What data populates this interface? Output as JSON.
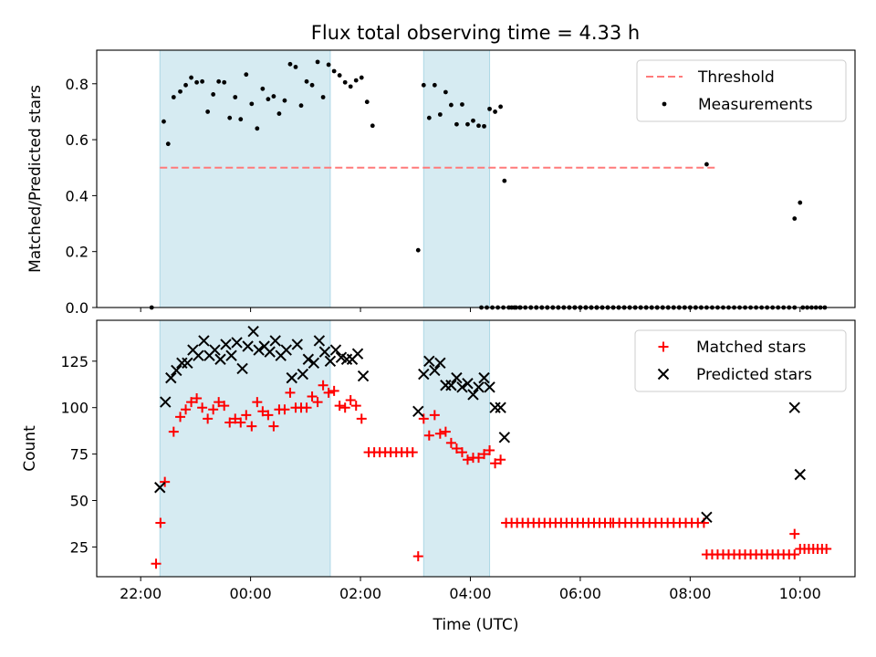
{
  "figure_title": "Flux total observing time = 4.33 h",
  "xlabel": "Time (UTC)",
  "xticks": [
    "22:00",
    "00:00",
    "02:00",
    "04:00",
    "06:00",
    "08:00",
    "10:00"
  ],
  "observing_windows": [
    [
      22.35,
      25.45
    ],
    [
      27.15,
      28.35
    ]
  ],
  "chart_data": [
    {
      "type": "scatter",
      "ylabel": "Matched/Predicted stars",
      "ylim": [
        0,
        0.92
      ],
      "yticks": [
        "0.0",
        "0.2",
        "0.4",
        "0.6",
        "0.8"
      ],
      "legend_position": "top-right",
      "threshold": {
        "name": "Threshold",
        "value": 0.5,
        "x_range": [
          22.35,
          32.5
        ],
        "color": "#ff7a7a"
      },
      "series": [
        {
          "name": "Measurements",
          "color": "#000000",
          "points": [
            [
              22.2,
              0.0
            ],
            [
              22.42,
              0.665
            ],
            [
              22.5,
              0.585
            ],
            [
              22.6,
              0.752
            ],
            [
              22.72,
              0.772
            ],
            [
              22.82,
              0.795
            ],
            [
              22.92,
              0.822
            ],
            [
              23.02,
              0.805
            ],
            [
              23.12,
              0.808
            ],
            [
              23.22,
              0.7
            ],
            [
              23.32,
              0.762
            ],
            [
              23.42,
              0.808
            ],
            [
              23.52,
              0.805
            ],
            [
              23.62,
              0.678
            ],
            [
              23.72,
              0.752
            ],
            [
              23.82,
              0.673
            ],
            [
              23.92,
              0.833
            ],
            [
              24.02,
              0.728
            ],
            [
              24.12,
              0.64
            ],
            [
              24.22,
              0.782
            ],
            [
              24.32,
              0.745
            ],
            [
              24.42,
              0.755
            ],
            [
              24.52,
              0.693
            ],
            [
              24.62,
              0.74
            ],
            [
              24.72,
              0.87
            ],
            [
              24.82,
              0.86
            ],
            [
              24.92,
              0.722
            ],
            [
              25.02,
              0.808
            ],
            [
              25.12,
              0.795
            ],
            [
              25.22,
              0.878
            ],
            [
              25.32,
              0.752
            ],
            [
              25.42,
              0.868
            ],
            [
              25.52,
              0.845
            ],
            [
              25.62,
              0.83
            ],
            [
              25.72,
              0.805
            ],
            [
              25.82,
              0.79
            ],
            [
              25.92,
              0.812
            ],
            [
              26.02,
              0.822
            ],
            [
              26.12,
              0.735
            ],
            [
              26.22,
              0.65
            ],
            [
              27.05,
              0.205
            ],
            [
              27.15,
              0.795
            ],
            [
              27.25,
              0.678
            ],
            [
              27.35,
              0.795
            ],
            [
              27.45,
              0.69
            ],
            [
              27.55,
              0.77
            ],
            [
              27.65,
              0.724
            ],
            [
              27.75,
              0.655
            ],
            [
              27.85,
              0.726
            ],
            [
              27.95,
              0.655
            ],
            [
              28.05,
              0.668
            ],
            [
              28.15,
              0.65
            ],
            [
              28.25,
              0.648
            ],
            [
              28.35,
              0.71
            ],
            [
              28.45,
              0.7
            ],
            [
              28.55,
              0.718
            ],
            [
              28.62,
              0.453
            ],
            [
              32.3,
              0.512
            ],
            [
              33.9,
              0.318
            ],
            [
              34.0,
              0.375
            ]
          ],
          "zero_runs": [
            [
              28.2,
              30.3,
              0.1
            ],
            [
              28.75,
              28.95,
              0.08
            ],
            [
              29.1,
              32.2,
              0.1
            ],
            [
              29.9,
              33.3,
              0.1
            ],
            [
              33.4,
              33.9,
              0.1
            ],
            [
              34.05,
              34.5,
              0.08
            ]
          ]
        }
      ]
    },
    {
      "type": "scatter",
      "ylabel": "Count",
      "ylim": [
        9,
        147
      ],
      "yticks": [
        "25",
        "50",
        "75",
        "100",
        "125"
      ],
      "legend_position": "top-right",
      "series": [
        {
          "name": "Matched stars",
          "marker": "plus",
          "color": "#ff0000",
          "points": [
            [
              22.28,
              16
            ],
            [
              22.36,
              38
            ],
            [
              22.44,
              60
            ],
            [
              22.6,
              87
            ],
            [
              22.72,
              95
            ],
            [
              22.82,
              99
            ],
            [
              22.92,
              103
            ],
            [
              23.02,
              105
            ],
            [
              23.12,
              100
            ],
            [
              23.22,
              94
            ],
            [
              23.32,
              99
            ],
            [
              23.42,
              103
            ],
            [
              23.52,
              101
            ],
            [
              23.62,
              92
            ],
            [
              23.72,
              94
            ],
            [
              23.82,
              92
            ],
            [
              23.92,
              96
            ],
            [
              24.02,
              90
            ],
            [
              24.12,
              103
            ],
            [
              24.22,
              98
            ],
            [
              24.32,
              96
            ],
            [
              24.42,
              90
            ],
            [
              24.52,
              99
            ],
            [
              24.62,
              99
            ],
            [
              24.72,
              108
            ],
            [
              24.82,
              100
            ],
            [
              24.92,
              100
            ],
            [
              25.02,
              100
            ],
            [
              25.12,
              106
            ],
            [
              25.22,
              103
            ],
            [
              25.32,
              112
            ],
            [
              25.42,
              108
            ],
            [
              25.52,
              109
            ],
            [
              25.62,
              101
            ],
            [
              25.72,
              100
            ],
            [
              25.82,
              104
            ],
            [
              25.92,
              101
            ],
            [
              26.02,
              94
            ],
            [
              27.05,
              20
            ],
            [
              27.15,
              94
            ],
            [
              27.25,
              85
            ],
            [
              27.35,
              96
            ],
            [
              27.45,
              86
            ],
            [
              27.55,
              87
            ],
            [
              27.65,
              81
            ],
            [
              27.75,
              78
            ],
            [
              27.85,
              76
            ],
            [
              27.95,
              72
            ],
            [
              28.05,
              73
            ],
            [
              28.15,
              73
            ],
            [
              28.25,
              75
            ],
            [
              28.35,
              77
            ],
            [
              28.45,
              70
            ],
            [
              28.55,
              72
            ],
            [
              33.9,
              32
            ]
          ],
          "runs": [
            [
              26.15,
              27.0,
              76,
              0.1
            ],
            [
              28.65,
              30.55,
              38,
              0.1
            ],
            [
              30.6,
              32.25,
              38,
              0.11
            ],
            [
              32.3,
              33.9,
              21,
              0.1
            ],
            [
              34.0,
              34.5,
              24,
              0.08
            ]
          ]
        },
        {
          "name": "Predicted stars",
          "marker": "x",
          "color": "#000000",
          "points": [
            [
              22.35,
              57
            ],
            [
              22.45,
              103
            ],
            [
              22.55,
              116
            ],
            [
              22.65,
              120
            ],
            [
              22.75,
              124
            ],
            [
              22.85,
              124
            ],
            [
              22.95,
              131
            ],
            [
              23.05,
              128
            ],
            [
              23.15,
              136
            ],
            [
              23.25,
              128
            ],
            [
              23.35,
              131
            ],
            [
              23.45,
              126
            ],
            [
              23.55,
              134
            ],
            [
              23.65,
              128
            ],
            [
              23.75,
              135
            ],
            [
              23.85,
              121
            ],
            [
              23.95,
              133
            ],
            [
              24.05,
              141
            ],
            [
              24.15,
              131
            ],
            [
              24.25,
              133
            ],
            [
              24.35,
              130
            ],
            [
              24.45,
              136
            ],
            [
              24.55,
              128
            ],
            [
              24.65,
              131
            ],
            [
              24.75,
              116
            ],
            [
              24.85,
              134
            ],
            [
              24.95,
              118
            ],
            [
              25.05,
              126
            ],
            [
              25.15,
              124
            ],
            [
              25.25,
              136
            ],
            [
              25.35,
              130
            ],
            [
              25.45,
              125
            ],
            [
              25.55,
              131
            ],
            [
              25.65,
              127
            ],
            [
              25.75,
              126
            ],
            [
              25.85,
              126
            ],
            [
              25.95,
              129
            ],
            [
              26.05,
              117
            ],
            [
              27.05,
              98
            ],
            [
              27.15,
              118
            ],
            [
              27.25,
              125
            ],
            [
              27.35,
              120
            ],
            [
              27.45,
              124
            ],
            [
              27.55,
              112
            ],
            [
              27.65,
              112
            ],
            [
              27.75,
              116
            ],
            [
              27.85,
              111
            ],
            [
              27.95,
              113
            ],
            [
              28.05,
              107
            ],
            [
              28.15,
              111
            ],
            [
              28.25,
              116
            ],
            [
              28.35,
              111
            ],
            [
              28.45,
              100
            ],
            [
              28.55,
              100
            ],
            [
              28.62,
              84
            ],
            [
              32.3,
              41
            ],
            [
              33.9,
              100
            ],
            [
              34.0,
              64
            ]
          ]
        }
      ]
    }
  ]
}
